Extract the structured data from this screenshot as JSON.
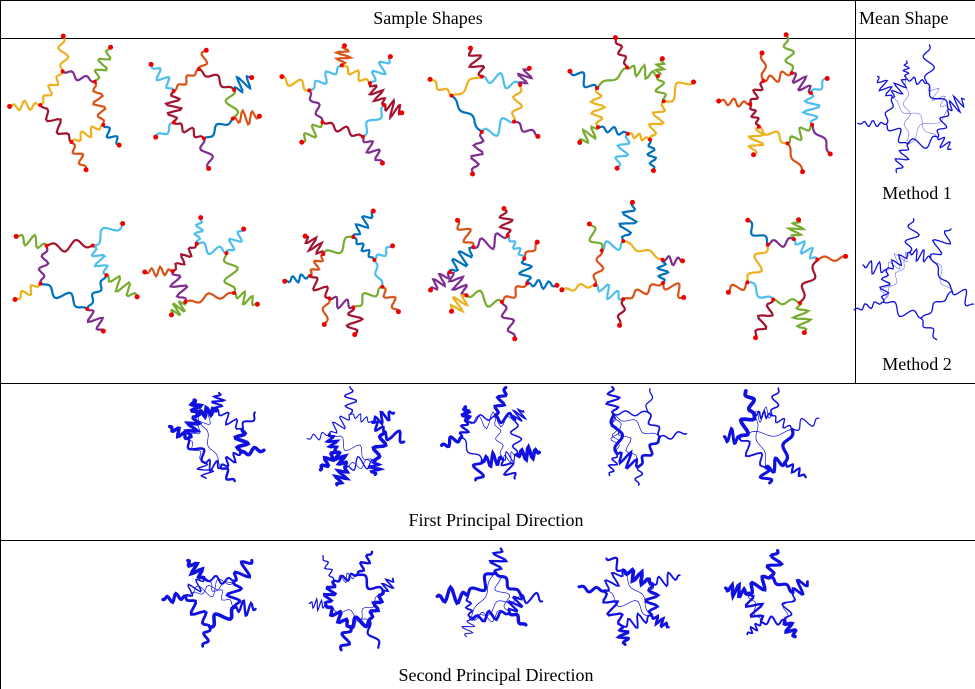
{
  "header": {
    "sample_shapes": "Sample Shapes",
    "mean_shape": "Mean Shape"
  },
  "mean_shapes": {
    "labels": [
      "Method 1",
      "Method 2"
    ]
  },
  "principal_directions": [
    "First Principal Direction",
    "Second Principal Direction"
  ]
}
